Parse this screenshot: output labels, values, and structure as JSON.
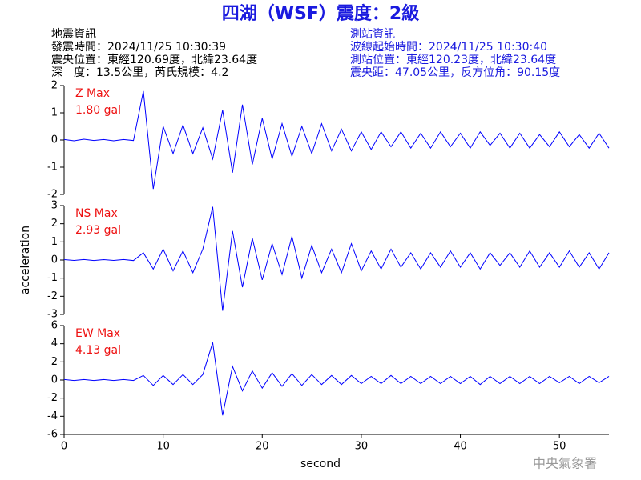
{
  "header": {
    "title": "四湖（WSF）震度：2級",
    "left": [
      "地震資訊",
      "發震時間：2024/11/25 10:30:39",
      "震央位置：東經120.69度，北緯23.64度",
      "深　度：13.5公里，芮氏規模：4.2"
    ],
    "right": [
      "測站資訊",
      "波線起始時間：2024/11/25 10:30:40",
      "測站位置：東經120.23度，北緯23.64度",
      "震央距：47.05公里，反方位角：90.15度"
    ],
    "footer": "中央氣象署"
  },
  "chart_data": [
    {
      "type": "line",
      "annotations": [
        "Z Max",
        "1.80 gal"
      ],
      "color": "#0000ff",
      "annotation_color": "#ee1111",
      "xlim": [
        0,
        55
      ],
      "ylim": [
        -2,
        2
      ],
      "yticks": [
        -2,
        -1,
        0,
        1,
        2
      ],
      "x": [
        0,
        1,
        2,
        3,
        4,
        5,
        6,
        7,
        8,
        9,
        10,
        11,
        12,
        13,
        14,
        15,
        16,
        17,
        18,
        19,
        20,
        21,
        22,
        23,
        24,
        25,
        26,
        27,
        28,
        29,
        30,
        31,
        32,
        33,
        34,
        35,
        36,
        37,
        38,
        39,
        40,
        41,
        42,
        43,
        44,
        45,
        46,
        47,
        48,
        49,
        50,
        51,
        52,
        53,
        54,
        55
      ],
      "values": [
        0.02,
        -0.03,
        0.03,
        -0.02,
        0.02,
        -0.03,
        0.02,
        -0.02,
        1.8,
        -1.8,
        0.5,
        -0.5,
        0.55,
        -0.5,
        0.45,
        -0.7,
        1.1,
        -1.2,
        1.3,
        -0.9,
        0.8,
        -0.7,
        0.6,
        -0.6,
        0.5,
        -0.5,
        0.6,
        -0.4,
        0.4,
        -0.4,
        0.3,
        -0.35,
        0.3,
        -0.25,
        0.3,
        -0.3,
        0.25,
        -0.3,
        0.3,
        -0.25,
        0.25,
        -0.3,
        0.3,
        -0.2,
        0.25,
        -0.3,
        0.25,
        -0.3,
        0.2,
        -0.25,
        0.3,
        -0.25,
        0.2,
        -0.3,
        0.25,
        -0.3
      ]
    },
    {
      "type": "line",
      "annotations": [
        "NS Max",
        "2.93 gal"
      ],
      "color": "#0000ff",
      "annotation_color": "#ee1111",
      "ylabel": "acceleration",
      "xlim": [
        0,
        55
      ],
      "ylim": [
        -3,
        3
      ],
      "yticks": [
        -3,
        -2,
        -1,
        0,
        1,
        2,
        3
      ],
      "x": [
        0,
        1,
        2,
        3,
        4,
        5,
        6,
        7,
        8,
        9,
        10,
        11,
        12,
        13,
        14,
        15,
        16,
        17,
        18,
        19,
        20,
        21,
        22,
        23,
        24,
        25,
        26,
        27,
        28,
        29,
        30,
        31,
        32,
        33,
        34,
        35,
        36,
        37,
        38,
        39,
        40,
        41,
        42,
        43,
        44,
        45,
        46,
        47,
        48,
        49,
        50,
        51,
        52,
        53,
        54,
        55
      ],
      "values": [
        0.02,
        -0.02,
        0.03,
        -0.03,
        0.02,
        -0.02,
        0.03,
        -0.03,
        0.4,
        -0.5,
        0.6,
        -0.6,
        0.5,
        -0.7,
        0.6,
        2.93,
        -2.8,
        1.6,
        -1.5,
        1.2,
        -1.1,
        0.9,
        -0.8,
        1.3,
        -1,
        0.8,
        -0.7,
        0.6,
        -0.7,
        0.9,
        -0.6,
        0.5,
        -0.5,
        0.6,
        -0.4,
        0.4,
        -0.5,
        0.4,
        -0.4,
        0.5,
        -0.4,
        0.4,
        -0.5,
        0.4,
        -0.3,
        0.4,
        -0.4,
        0.5,
        -0.4,
        0.4,
        -0.4,
        0.5,
        -0.4,
        0.4,
        -0.5,
        0.4
      ]
    },
    {
      "type": "line",
      "annotations": [
        "EW Max",
        "4.13 gal"
      ],
      "color": "#0000ff",
      "annotation_color": "#ee1111",
      "xlabel": "second",
      "xlim": [
        0,
        55
      ],
      "xticks": [
        0,
        10,
        20,
        30,
        40,
        50
      ],
      "ylim": [
        -6,
        6
      ],
      "yticks": [
        -6,
        -4,
        -2,
        0,
        2,
        4,
        6
      ],
      "x": [
        0,
        1,
        2,
        3,
        4,
        5,
        6,
        7,
        8,
        9,
        10,
        11,
        12,
        13,
        14,
        15,
        16,
        17,
        18,
        19,
        20,
        21,
        22,
        23,
        24,
        25,
        26,
        27,
        28,
        29,
        30,
        31,
        32,
        33,
        34,
        35,
        36,
        37,
        38,
        39,
        40,
        41,
        42,
        43,
        44,
        45,
        46,
        47,
        48,
        49,
        50,
        51,
        52,
        53,
        54,
        55
      ],
      "values": [
        0.05,
        -0.05,
        0.05,
        -0.05,
        0.05,
        -0.05,
        0.05,
        -0.05,
        0.5,
        -0.6,
        0.5,
        -0.5,
        0.6,
        -0.5,
        0.6,
        4.13,
        -3.9,
        1.5,
        -1.2,
        1,
        -0.9,
        0.8,
        -0.7,
        0.7,
        -0.6,
        0.6,
        -0.5,
        0.5,
        -0.5,
        0.5,
        -0.4,
        0.4,
        -0.4,
        0.5,
        -0.4,
        0.4,
        -0.4,
        0.4,
        -0.4,
        0.4,
        -0.4,
        0.4,
        -0.5,
        0.4,
        -0.4,
        0.4,
        -0.4,
        0.4,
        -0.4,
        0.4,
        -0.3,
        0.4,
        -0.4,
        0.4,
        -0.3,
        0.4
      ]
    }
  ]
}
